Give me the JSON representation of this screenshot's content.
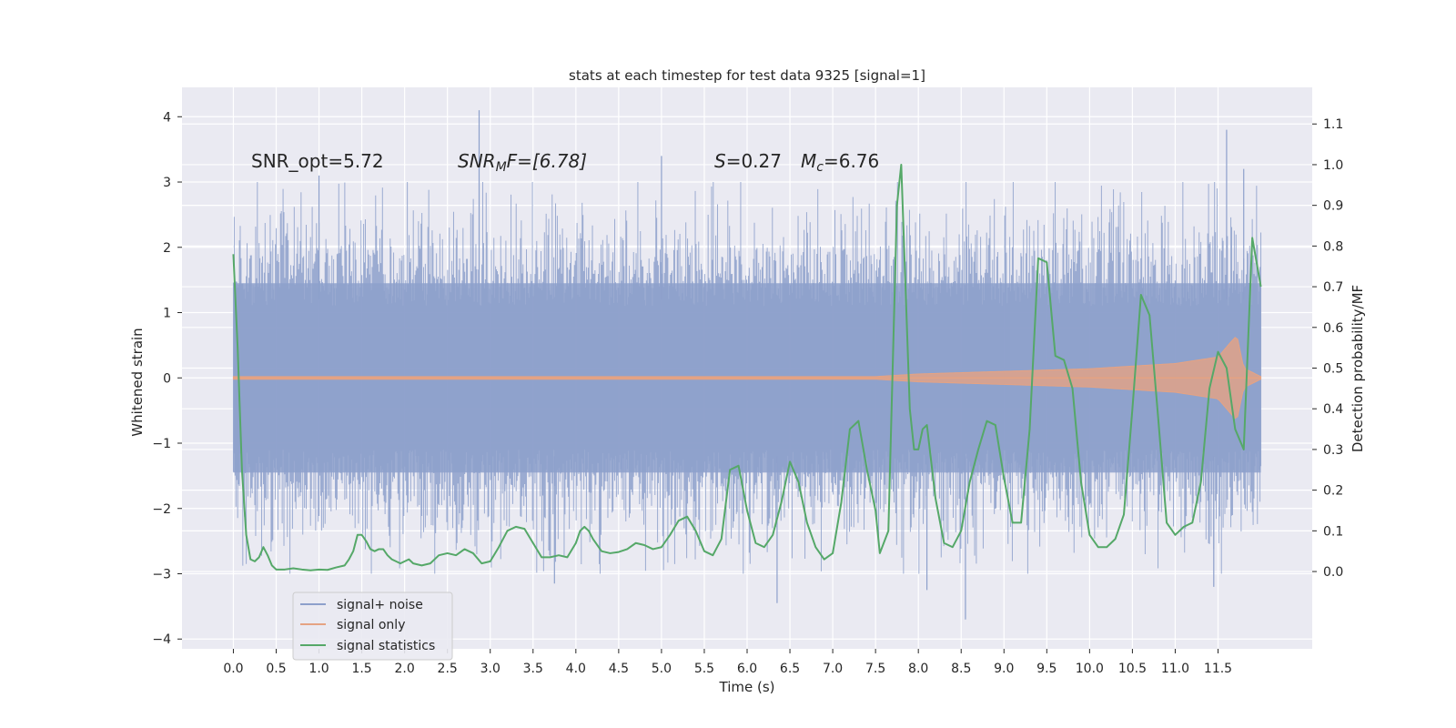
{
  "chart_data": {
    "type": "line",
    "title": "stats at each timestep for test data 9325 [signal=1]",
    "xlabel": "Time (s)",
    "ylabel_left": "Whitened strain",
    "ylabel_right": "Detection probability/MF",
    "xlim": [
      -0.6,
      12.6
    ],
    "ylim_left": [
      -4.15,
      4.45
    ],
    "ylim_right": [
      -0.19,
      1.19
    ],
    "x_ticks": [
      0.0,
      0.5,
      1.0,
      1.5,
      2.0,
      2.5,
      3.0,
      3.5,
      4.0,
      4.5,
      5.0,
      5.5,
      6.0,
      6.5,
      7.0,
      7.5,
      8.0,
      8.5,
      9.0,
      9.5,
      10.0,
      10.5,
      11.0,
      11.5
    ],
    "x_tick_labels": [
      "0.0",
      "0.5",
      "1.0",
      "1.5",
      "2.0",
      "2.5",
      "3.0",
      "3.5",
      "4.0",
      "4.5",
      "5.0",
      "5.5",
      "6.0",
      "6.5",
      "7.0",
      "7.5",
      "8.0",
      "8.5",
      "9.0",
      "9.5",
      "10.0",
      "10.5",
      "11.0",
      "11.5"
    ],
    "y_left_ticks": [
      -4,
      -3,
      -2,
      -1,
      0,
      1,
      2,
      3,
      4
    ],
    "y_left_tick_labels": [
      "−4",
      "−3",
      "−2",
      "−1",
      "0",
      "1",
      "2",
      "3",
      "4"
    ],
    "y_right_ticks": [
      0.0,
      0.1,
      0.2,
      0.3,
      0.4,
      0.5,
      0.6,
      0.7,
      0.8,
      0.9,
      1.0,
      1.1
    ],
    "y_right_tick_labels": [
      "0.0",
      "0.1",
      "0.2",
      "0.3",
      "0.4",
      "0.5",
      "0.6",
      "0.7",
      "0.8",
      "0.9",
      "1.0",
      "1.1"
    ],
    "annotations": {
      "snr_opt": "SNR_opt=5.72",
      "snr_mf_base": "SNR",
      "snr_mf_sub": "M",
      "snr_mf_rest": "F=[6.78]",
      "s_var": "S",
      "s_rest": "=0.27",
      "mc_base": "M",
      "mc_sub": "c",
      "mc_rest": "=6.76"
    },
    "legend": {
      "position": "lower-left",
      "entries": [
        {
          "label": "signal+ noise",
          "color": "#8da0cb"
        },
        {
          "label": "signal only",
          "color": "#e5a383"
        },
        {
          "label": "signal statistics",
          "color": "#55a868"
        }
      ]
    },
    "series": [
      {
        "name": "signal+ noise",
        "axis": "left",
        "kind": "noise-band",
        "color": "#8da0cb",
        "x_range": [
          0.0,
          12.0
        ],
        "band_low": -1.45,
        "band_high": 1.45,
        "peak_high": [
          [
            2.87,
            4.1
          ],
          [
            11.6,
            3.8
          ],
          [
            5.0,
            3.4
          ],
          [
            11.8,
            3.2
          ],
          [
            1.0,
            3.1
          ]
        ],
        "peak_low": [
          [
            8.55,
            -3.7
          ],
          [
            6.35,
            -3.45
          ],
          [
            8.1,
            -3.25
          ],
          [
            3.75,
            -3.15
          ],
          [
            11.45,
            -3.2
          ]
        ]
      },
      {
        "name": "signal only",
        "axis": "left",
        "kind": "chirp",
        "color": "#e5a383",
        "x_range": [
          0.0,
          12.0
        ],
        "envelope_t": [
          0.0,
          7.5,
          8.0,
          9.0,
          10.0,
          11.0,
          11.5,
          11.65,
          11.72,
          11.8,
          12.0
        ],
        "envelope_a": [
          0.02,
          0.02,
          0.06,
          0.1,
          0.14,
          0.22,
          0.32,
          0.55,
          0.65,
          0.15,
          0.02
        ]
      },
      {
        "name": "signal statistics",
        "axis": "right",
        "kind": "line",
        "color": "#55a868",
        "x": [
          0.0,
          0.05,
          0.1,
          0.15,
          0.2,
          0.25,
          0.3,
          0.35,
          0.4,
          0.45,
          0.5,
          0.6,
          0.7,
          0.8,
          0.9,
          1.0,
          1.1,
          1.2,
          1.3,
          1.35,
          1.4,
          1.45,
          1.5,
          1.55,
          1.6,
          1.65,
          1.7,
          1.75,
          1.8,
          1.85,
          1.9,
          1.95,
          2.0,
          2.05,
          2.1,
          2.2,
          2.3,
          2.4,
          2.5,
          2.6,
          2.7,
          2.8,
          2.9,
          3.0,
          3.1,
          3.2,
          3.3,
          3.4,
          3.5,
          3.6,
          3.7,
          3.8,
          3.9,
          4.0,
          4.05,
          4.1,
          4.15,
          4.2,
          4.3,
          4.4,
          4.5,
          4.6,
          4.7,
          4.8,
          4.9,
          5.0,
          5.1,
          5.2,
          5.3,
          5.4,
          5.5,
          5.6,
          5.7,
          5.8,
          5.9,
          6.0,
          6.1,
          6.2,
          6.3,
          6.4,
          6.5,
          6.6,
          6.7,
          6.8,
          6.9,
          7.0,
          7.1,
          7.2,
          7.3,
          7.4,
          7.5,
          7.55,
          7.65,
          7.75,
          7.8,
          7.85,
          7.9,
          7.95,
          8.0,
          8.05,
          8.1,
          8.2,
          8.3,
          8.4,
          8.5,
          8.6,
          8.7,
          8.8,
          8.9,
          9.0,
          9.1,
          9.2,
          9.3,
          9.4,
          9.5,
          9.6,
          9.7,
          9.8,
          9.9,
          10.0,
          10.1,
          10.2,
          10.3,
          10.4,
          10.5,
          10.6,
          10.7,
          10.8,
          10.9,
          11.0,
          11.1,
          11.2,
          11.3,
          11.4,
          11.5,
          11.6,
          11.7,
          11.8,
          11.9,
          12.0
        ],
        "y": [
          0.78,
          0.55,
          0.25,
          0.09,
          0.03,
          0.025,
          0.035,
          0.06,
          0.04,
          0.015,
          0.005,
          0.005,
          0.008,
          0.005,
          0.003,
          0.005,
          0.004,
          0.01,
          0.015,
          0.03,
          0.05,
          0.09,
          0.09,
          0.075,
          0.055,
          0.05,
          0.055,
          0.055,
          0.04,
          0.03,
          0.025,
          0.02,
          0.025,
          0.03,
          0.02,
          0.015,
          0.02,
          0.04,
          0.045,
          0.04,
          0.055,
          0.045,
          0.02,
          0.025,
          0.06,
          0.1,
          0.11,
          0.105,
          0.07,
          0.035,
          0.035,
          0.04,
          0.035,
          0.07,
          0.1,
          0.11,
          0.1,
          0.08,
          0.05,
          0.045,
          0.048,
          0.055,
          0.07,
          0.065,
          0.055,
          0.06,
          0.09,
          0.125,
          0.135,
          0.1,
          0.05,
          0.04,
          0.08,
          0.25,
          0.26,
          0.15,
          0.07,
          0.06,
          0.09,
          0.17,
          0.27,
          0.22,
          0.12,
          0.06,
          0.03,
          0.045,
          0.17,
          0.35,
          0.37,
          0.25,
          0.15,
          0.045,
          0.1,
          0.9,
          1.0,
          0.7,
          0.4,
          0.3,
          0.3,
          0.35,
          0.36,
          0.18,
          0.07,
          0.06,
          0.1,
          0.22,
          0.3,
          0.37,
          0.36,
          0.23,
          0.12,
          0.12,
          0.35,
          0.77,
          0.76,
          0.53,
          0.52,
          0.45,
          0.22,
          0.09,
          0.06,
          0.06,
          0.08,
          0.14,
          0.4,
          0.68,
          0.63,
          0.38,
          0.12,
          0.09,
          0.11,
          0.12,
          0.22,
          0.45,
          0.54,
          0.5,
          0.35,
          0.3,
          0.82,
          0.7
        ]
      }
    ]
  }
}
